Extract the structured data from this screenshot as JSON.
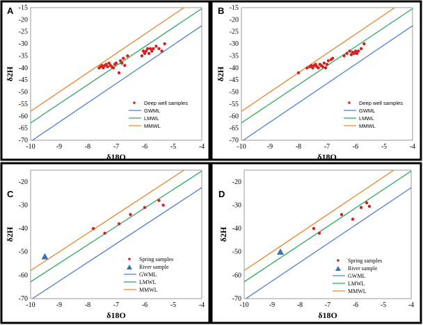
{
  "chart_data": [
    {
      "type": "scatter",
      "panel_label": "A",
      "xlabel": "δ18O",
      "ylabel": "δ2H",
      "xlim": [
        -10,
        -4
      ],
      "ylim": [
        -70,
        -15
      ],
      "xticks": [
        -10,
        -9,
        -8,
        -7,
        -6,
        -5,
        -4
      ],
      "yticks": [
        -70,
        -65,
        -60,
        -55,
        -50,
        -45,
        -40,
        -35,
        -30,
        -25,
        -20,
        -15
      ],
      "legend_position": "bottom-right",
      "lines": [
        {
          "name": "GWML",
          "color": "#4a7fd6",
          "slope": 8.0,
          "intercept": 9.5
        },
        {
          "name": "LMWL",
          "color": "#2ca85a",
          "slope": 7.9,
          "intercept": 16.2
        },
        {
          "name": "MMWL",
          "color": "#e8862a",
          "slope": 8.0,
          "intercept": 22.0
        }
      ],
      "series": [
        {
          "name": "Deep well samples",
          "marker": "circle",
          "color": "#d62020",
          "x": [
            -7.6,
            -7.55,
            -7.5,
            -7.45,
            -7.4,
            -7.3,
            -7.25,
            -7.2,
            -7.15,
            -7.05,
            -7.0,
            -6.9,
            -6.85,
            -6.8,
            -6.75,
            -6.7,
            -6.6,
            -6.1,
            -6.05,
            -6.0,
            -5.95,
            -5.9,
            -5.85,
            -5.8,
            -5.75,
            -5.7,
            -5.6,
            -5.5,
            -5.4,
            -5.3,
            -7.35,
            -7.1
          ],
          "y": [
            -40,
            -39.5,
            -39,
            -40,
            -39,
            -39.5,
            -38,
            -39,
            -39.5,
            -38.5,
            -38,
            -42,
            -37,
            -38,
            -36,
            -39,
            -35,
            -35,
            -33,
            -34,
            -33,
            -32,
            -34,
            -32,
            -33,
            -32,
            -31,
            -32,
            -33,
            -30,
            -38.5,
            -40
          ]
        }
      ]
    },
    {
      "type": "scatter",
      "panel_label": "B",
      "xlabel": "δ18O",
      "ylabel": "δ2H",
      "xlim": [
        -10,
        -4
      ],
      "ylim": [
        -70,
        -15
      ],
      "xticks": [
        -10,
        -9,
        -8,
        -7,
        -6,
        -5,
        -4
      ],
      "yticks": [
        -70,
        -65,
        -60,
        -55,
        -50,
        -45,
        -40,
        -35,
        -30,
        -25,
        -20,
        -15
      ],
      "legend_position": "bottom-right",
      "lines": [
        {
          "name": "GWML",
          "color": "#4a7fd6",
          "slope": 8.0,
          "intercept": 9.5
        },
        {
          "name": "LMWL",
          "color": "#2ca85a",
          "slope": 7.9,
          "intercept": 16.2
        },
        {
          "name": "MMWL",
          "color": "#e8862a",
          "slope": 8.0,
          "intercept": 22.0
        }
      ],
      "series": [
        {
          "name": "Deep well samples",
          "marker": "circle",
          "color": "#d62020",
          "x": [
            -8.0,
            -7.7,
            -7.6,
            -7.55,
            -7.5,
            -7.45,
            -7.4,
            -7.35,
            -7.3,
            -7.25,
            -7.2,
            -7.15,
            -7.1,
            -7.05,
            -7.0,
            -6.95,
            -6.85,
            -6.8,
            -6.4,
            -6.3,
            -6.2,
            -6.15,
            -6.1,
            -6.05,
            -6.0,
            -5.95,
            -5.9,
            -5.8,
            -5.7,
            -7.4
          ],
          "y": [
            -42,
            -40,
            -39.5,
            -39,
            -40,
            -39,
            -38.5,
            -39.5,
            -40,
            -38.5,
            -39,
            -39.5,
            -38,
            -40,
            -38.5,
            -37,
            -36.5,
            -36,
            -35,
            -34,
            -33,
            -34.5,
            -33.5,
            -34,
            -33,
            -34,
            -33,
            -32,
            -30,
            -39
          ]
        }
      ]
    },
    {
      "type": "scatter",
      "panel_label": "C",
      "xlabel": "δ18O",
      "ylabel": "δ2H",
      "xlim": [
        -10,
        -4
      ],
      "ylim": [
        -70,
        -15
      ],
      "xticks": [
        -10,
        -9,
        -8,
        -7,
        -6,
        -5,
        -4
      ],
      "yticks": [
        -70,
        -60,
        -50,
        -40,
        -30,
        -20
      ],
      "legend_position": "bottom-right",
      "lines": [
        {
          "name": "GWML",
          "color": "#4a7fd6",
          "slope": 8.0,
          "intercept": 9.5
        },
        {
          "name": "LMWL",
          "color": "#2ca85a",
          "slope": 7.9,
          "intercept": 16.2
        },
        {
          "name": "MMWL",
          "color": "#e8862a",
          "slope": 8.0,
          "intercept": 22.0
        }
      ],
      "series": [
        {
          "name": "Spring samples",
          "marker": "circle",
          "color": "#d62020",
          "x": [
            -7.8,
            -7.4,
            -6.9,
            -6.5,
            -6.0,
            -5.5,
            -5.35
          ],
          "y": [
            -40,
            -42,
            -38,
            -34,
            -31,
            -28,
            -30
          ]
        },
        {
          "name": "River sample",
          "marker": "triangle",
          "color": "#3a6fb0",
          "x": [
            -9.5
          ],
          "y": [
            -52
          ]
        }
      ]
    },
    {
      "type": "scatter",
      "panel_label": "D",
      "xlabel": "δ18O",
      "ylabel": "δ2H",
      "xlim": [
        -10,
        -4
      ],
      "ylim": [
        -70,
        -15
      ],
      "xticks": [
        -10,
        -9,
        -8,
        -7,
        -6,
        -5,
        -4
      ],
      "yticks": [
        -70,
        -60,
        -50,
        -40,
        -30,
        -20
      ],
      "legend_position": "bottom-right",
      "lines": [
        {
          "name": "GWML",
          "color": "#4a7fd6",
          "slope": 8.0,
          "intercept": 9.5
        },
        {
          "name": "LMWL",
          "color": "#2ca85a",
          "slope": 7.9,
          "intercept": 16.2
        },
        {
          "name": "MMWL",
          "color": "#e8862a",
          "slope": 8.0,
          "intercept": 22.0
        }
      ],
      "series": [
        {
          "name": "Spring samples",
          "marker": "circle",
          "color": "#d62020",
          "x": [
            -7.5,
            -7.3,
            -6.5,
            -6.1,
            -5.8,
            -5.6,
            -5.5
          ],
          "y": [
            -40,
            -42,
            -34,
            -36,
            -31,
            -29,
            -30.5
          ]
        },
        {
          "name": "River sample",
          "marker": "triangle",
          "color": "#3a6fb0",
          "x": [
            -8.7
          ],
          "y": [
            -50
          ]
        }
      ]
    }
  ]
}
